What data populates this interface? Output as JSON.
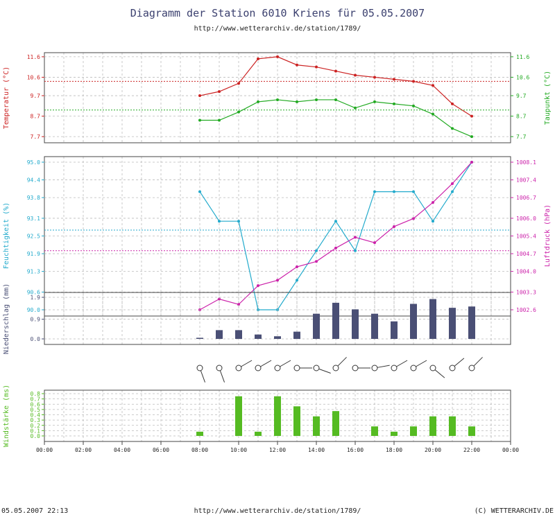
{
  "header": {
    "title": "Diagramm der Station 6010 Kriens für 05.05.2007",
    "url": "http://www.wetterarchiv.de/station/1789/"
  },
  "footer": {
    "left": "05.05.2007 22:13",
    "center": "http://www.wetterarchiv.de/station/1789/",
    "right": "(C) WETTERARCHIV.DE"
  },
  "colors": {
    "temperature": "#cc2222",
    "dewpoint": "#22aa22",
    "humidity": "#22aacc",
    "pressure": "#cc22aa",
    "precip": "#4a4f75",
    "wind": "#55bb22",
    "grid": "#bbbbbb",
    "frame": "#444444"
  },
  "chart_data": [
    {
      "type": "line",
      "id": "temp",
      "x_labels": [
        "00:00",
        "02:00",
        "04:00",
        "06:00",
        "08:00",
        "10:00",
        "12:00",
        "14:00",
        "16:00",
        "18:00",
        "20:00",
        "22:00",
        "00:00"
      ],
      "x": [
        "08:00",
        "09:00",
        "10:00",
        "11:00",
        "12:00",
        "13:00",
        "14:00",
        "15:00",
        "16:00",
        "17:00",
        "18:00",
        "19:00",
        "20:00",
        "21:00",
        "22:00"
      ],
      "ylabel_left": "Temperatur (°C)",
      "ylabel_right": "Taupunkt (°C)",
      "yticks_left": [
        "7.7",
        "8.7",
        "9.7",
        "10.6",
        "11.6"
      ],
      "yticks_right": [
        "7.7",
        "8.7",
        "9.7",
        "10.6",
        "11.6"
      ],
      "ylim": [
        7.4,
        11.8
      ],
      "series": [
        {
          "name": "Temperatur",
          "values": [
            9.7,
            9.9,
            10.3,
            11.5,
            11.6,
            11.2,
            11.1,
            10.9,
            10.7,
            10.6,
            10.5,
            10.4,
            10.2,
            9.3,
            8.7
          ],
          "avg": 10.4
        },
        {
          "name": "Taupunkt",
          "values": [
            8.5,
            8.5,
            8.9,
            9.4,
            9.5,
            9.4,
            9.5,
            9.5,
            9.1,
            9.4,
            9.3,
            9.2,
            8.8,
            8.1,
            7.7
          ],
          "avg": 9.0
        }
      ]
    },
    {
      "type": "line",
      "id": "humpress",
      "ylabel_left": "Feuchtigkeit (%)",
      "ylabel_right": "Luftdruck (hPa)",
      "yticks_left": [
        "90.0",
        "90.6",
        "91.3",
        "91.9",
        "92.5",
        "93.1",
        "93.8",
        "94.4",
        "95.0"
      ],
      "yticks_right": [
        "1002.6",
        "1003.3",
        "1004.0",
        "1004.7",
        "1005.4",
        "1006.0",
        "1006.7",
        "1007.4",
        "1008.1"
      ],
      "ylim_left": [
        89.8,
        95.2
      ],
      "ylim_right": [
        1002.35,
        1008.3
      ],
      "series": [
        {
          "name": "Feuchtigkeit",
          "axis": "left",
          "values": [
            94.0,
            93.0,
            93.0,
            90.0,
            90.0,
            91.0,
            92.0,
            93.0,
            92.0,
            94.0,
            94.0,
            94.0,
            93.0,
            94.0,
            95.0
          ],
          "avg": 92.7
        },
        {
          "name": "Luftdruck",
          "axis": "right",
          "values": [
            1002.6,
            1003.0,
            1002.8,
            1003.5,
            1003.7,
            1004.2,
            1004.4,
            1004.9,
            1005.3,
            1005.1,
            1005.7,
            1006.0,
            1006.6,
            1007.3,
            1008.1
          ],
          "avg": 1004.8
        }
      ]
    },
    {
      "type": "bar",
      "id": "precip",
      "ylabel_left": "Niederschlag (mm)",
      "yticks_left": [
        "0.0",
        "0.9",
        "1.9"
      ],
      "ylim": [
        -0.3,
        2.0
      ],
      "series": [
        {
          "name": "Niederschlag",
          "values": [
            0.05,
            0.4,
            0.4,
            0.2,
            0.12,
            0.33,
            1.15,
            1.65,
            1.35,
            1.15,
            0.8,
            1.6,
            1.82,
            1.42,
            1.48
          ]
        }
      ]
    },
    {
      "type": "scatter",
      "id": "winddir",
      "directions_deg": [
        160,
        160,
        60,
        60,
        60,
        90,
        110,
        45,
        90,
        80,
        60,
        60,
        130,
        50,
        45
      ]
    },
    {
      "type": "bar",
      "id": "wind",
      "ylabel_left": "Windstärke (ms)",
      "yticks_left": [
        "0.0",
        "0.1",
        "0.2",
        "0.3",
        "0.4",
        "0.5",
        "0.6",
        "0.7",
        "0.8"
      ],
      "ylim": [
        -0.05,
        0.85
      ],
      "series": [
        {
          "name": "Windstärke",
          "values": [
            0.08,
            0.0,
            0.75,
            0.08,
            0.75,
            0.56,
            0.37,
            0.47,
            0.0,
            0.18,
            0.08,
            0.18,
            0.37,
            0.37,
            0.18
          ]
        }
      ]
    }
  ]
}
